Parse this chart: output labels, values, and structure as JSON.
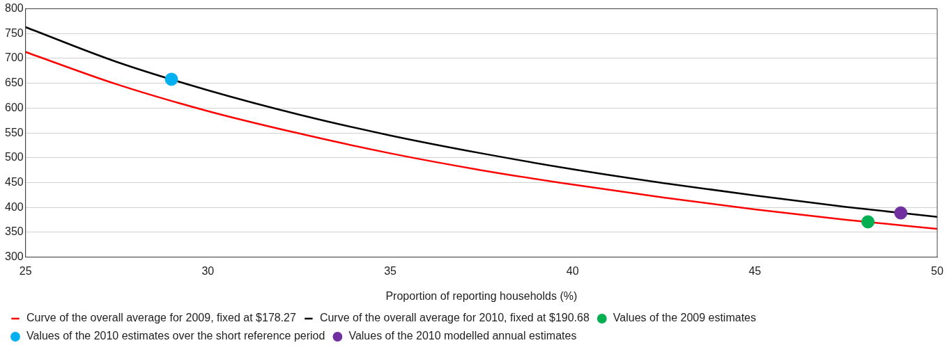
{
  "chart_data": {
    "type": "line",
    "xlabel": "Proportion of reporting households (%)",
    "xlim": [
      25,
      50
    ],
    "xticks": [
      25,
      30,
      35,
      40,
      45,
      50
    ],
    "ylim": [
      300,
      800
    ],
    "yticks": [
      300,
      350,
      400,
      450,
      500,
      550,
      600,
      650,
      700,
      750,
      800
    ],
    "grid": "y",
    "legend": "bottom",
    "marker": "none",
    "line_style": "solid",
    "series": [
      {
        "name": "Curve of the overall average for 2009, fixed at $178.27",
        "color": "#ff0000",
        "x": [
          25,
          27.5,
          30,
          32.5,
          35,
          37.5,
          40,
          42.5,
          45,
          47.5,
          50
        ],
        "values": [
          713,
          648,
          594,
          549,
          509,
          475,
          446,
          420,
          396,
          375,
          357
        ]
      },
      {
        "name": "Curve of the overall average for 2010, fixed at $190.68",
        "color": "#000000",
        "x": [
          25,
          27.5,
          30,
          32.5,
          35,
          37.5,
          40,
          42.5,
          45,
          47.5,
          50
        ],
        "values": [
          763,
          693,
          636,
          587,
          545,
          509,
          477,
          449,
          424,
          401,
          381
        ]
      },
      {
        "name": "Values of the 2009 estimates",
        "type": "scatter",
        "marker": "circle",
        "color": "#00b050",
        "x": [
          48.1
        ],
        "values": [
          371
        ]
      },
      {
        "name": "Values of the 2010 estimates over the short reference period",
        "type": "scatter",
        "marker": "circle",
        "color": "#00b0f0",
        "x": [
          29
        ],
        "values": [
          658
        ]
      },
      {
        "name": "Values of the 2010 modelled annual estimates",
        "type": "scatter",
        "marker": "circle",
        "color": "#7030a0",
        "x": [
          49
        ],
        "values": [
          389
        ]
      }
    ]
  }
}
